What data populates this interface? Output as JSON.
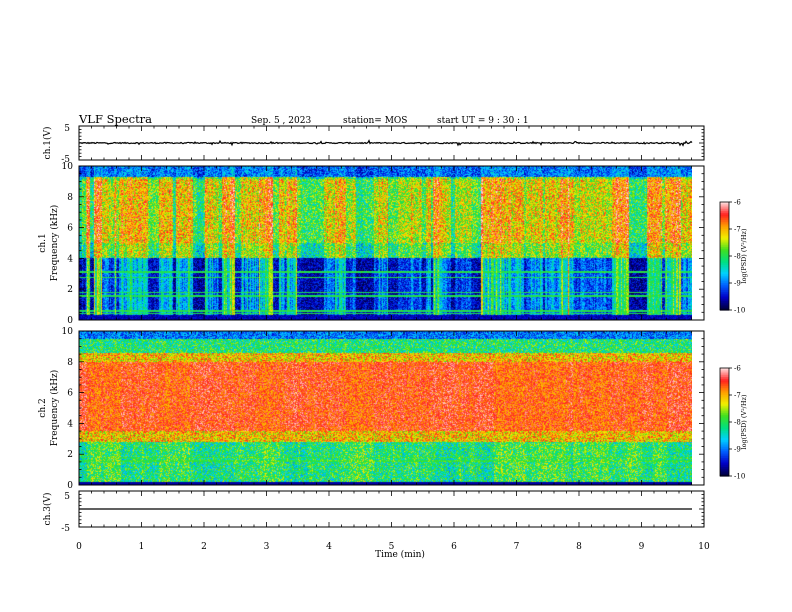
{
  "header": {
    "title": "VLF Spectra",
    "date": "Sep. 5 , 2023",
    "station": "station= MOS",
    "start": "start  UT =  9 : 30 : 1"
  },
  "chart_data": [
    {
      "type": "line",
      "name": "ch1-voltage",
      "ylabel": "ch.1(V)",
      "xlim": [
        0,
        10
      ],
      "ylim": [
        -5,
        5
      ],
      "y_ticks": [
        "5",
        "-5"
      ],
      "baseline_value": 0,
      "description_values": "near-zero noisy voltage trace"
    },
    {
      "type": "heatmap",
      "name": "ch1-spectrogram",
      "ylabel": "ch.1\nFrequency (kHz)",
      "ylabel_lines": [
        "ch.1",
        "Frequency (kHz)"
      ],
      "xlim": [
        0,
        9.83
      ],
      "ylim": [
        0,
        10
      ],
      "y_ticks": [
        "0",
        "2",
        "4",
        "6",
        "8",
        "10"
      ],
      "colorbar": {
        "label": "log(PSD) (V²/Hz)",
        "range": [
          -10,
          -6
        ],
        "ticks": [
          "-6",
          "-7",
          "-8",
          "-9",
          "-10"
        ]
      },
      "constant_lines_khz": [
        0.4,
        0.55,
        1.55,
        1.75,
        2.75,
        3.1
      ],
      "dominant_band_khz": [
        5,
        9.2
      ],
      "quiet_band_khz": [
        0.3,
        4
      ]
    },
    {
      "type": "heatmap",
      "name": "ch2-spectrogram",
      "ylabel": "ch.2\nFrequency (kHz)",
      "ylabel_lines": [
        "ch.2",
        "Frequency (kHz)"
      ],
      "xlim": [
        0,
        9.83
      ],
      "ylim": [
        0,
        10
      ],
      "y_ticks": [
        "0",
        "2",
        "4",
        "6",
        "8",
        "10"
      ],
      "colorbar": {
        "label": "log(PSD) (V²/Hz)",
        "range": [
          -10,
          -6
        ],
        "ticks": [
          "-6",
          "-7",
          "-8",
          "-9",
          "-10"
        ]
      },
      "constant_lines_khz": [
        1.55,
        1.75
      ],
      "dominant_band_khz": [
        3.5,
        8
      ]
    },
    {
      "type": "line",
      "name": "ch3-voltage",
      "ylabel": "ch.3(V)",
      "xlim": [
        0,
        10
      ],
      "ylim": [
        -5,
        5
      ],
      "y_ticks": [
        "5",
        "-5"
      ],
      "baseline_value": 0,
      "description_values": "flat line at 0 V"
    }
  ],
  "x_axis": {
    "label": "Time  (min)",
    "ticks": [
      "0",
      "1",
      "2",
      "3",
      "4",
      "5",
      "6",
      "7",
      "8",
      "9",
      "10"
    ],
    "range": [
      0,
      10
    ]
  },
  "colors": {
    "axis": "#000000",
    "background": "#ffffff",
    "colormap": [
      "#000040",
      "#0000c8",
      "#0060ff",
      "#00d0ff",
      "#00e080",
      "#40e020",
      "#f0f000",
      "#ffa000",
      "#ff2020",
      "#ffd8d8"
    ]
  }
}
